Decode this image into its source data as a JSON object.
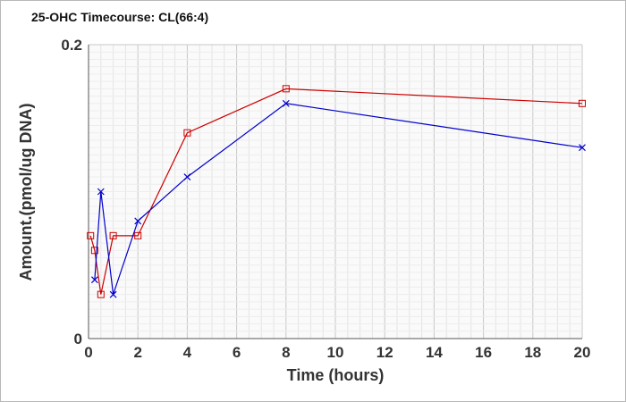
{
  "chart_data": {
    "type": "line",
    "title": "25-OHC Timecourse: CL(66:4)",
    "xlabel": "Time (hours)",
    "ylabel": "Amount.(pmol/ug DNA)",
    "xlim": [
      0,
      20
    ],
    "ylim": [
      0,
      0.2
    ],
    "x_ticks": [
      0,
      2,
      4,
      6,
      8,
      10,
      12,
      14,
      16,
      18,
      20
    ],
    "y_ticks": [
      0,
      0.2
    ],
    "x_tick_labels": [
      "0",
      "2",
      "4",
      "6",
      "8",
      "10",
      "12",
      "14",
      "16",
      "18",
      "20"
    ],
    "y_tick_labels": [
      "0",
      "0.2"
    ],
    "grid": true,
    "legend": "none",
    "series": [
      {
        "color": "#cc0000",
        "marker": "square",
        "x": [
          0.08,
          0.25,
          0.5,
          1,
          2,
          4,
          8,
          20
        ],
        "y": [
          0.07,
          0.06,
          0.03,
          0.07,
          0.07,
          0.14,
          0.17,
          0.16
        ]
      },
      {
        "color": "#0000cc",
        "marker": "x",
        "x": [
          0.25,
          0.5,
          1,
          2,
          4,
          8,
          20
        ],
        "y": [
          0.04,
          0.1,
          0.03,
          0.08,
          0.11,
          0.16,
          0.13
        ]
      }
    ]
  }
}
